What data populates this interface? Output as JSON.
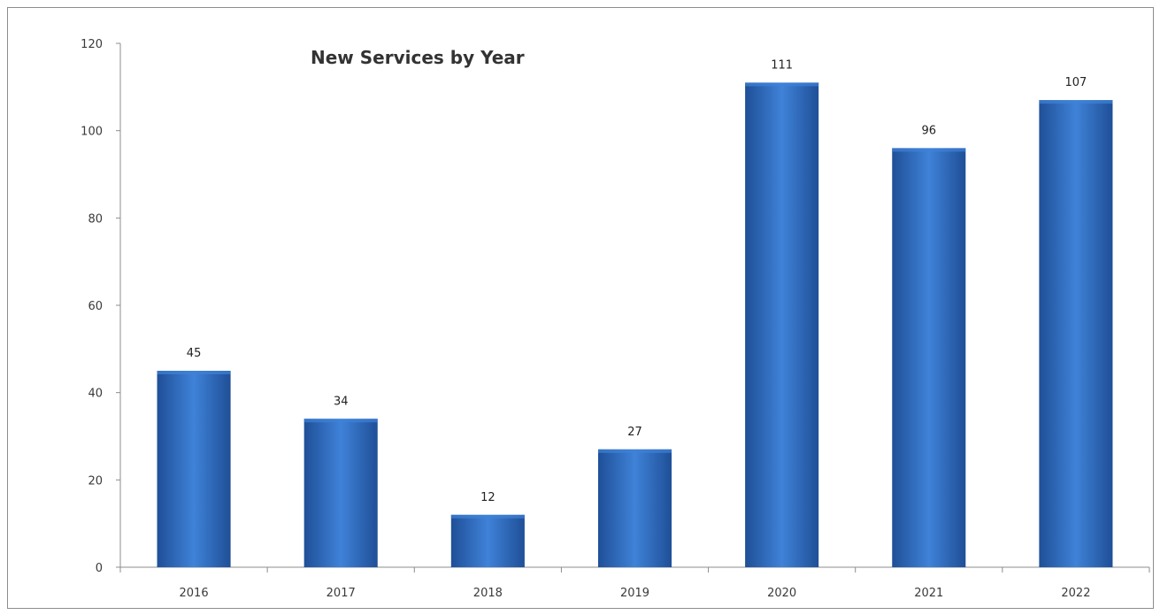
{
  "chart_data": {
    "type": "bar",
    "title": "New Services by Year",
    "categories": [
      "2016",
      "2017",
      "2018",
      "2019",
      "2020",
      "2021",
      "2022"
    ],
    "values": [
      45,
      34,
      12,
      27,
      111,
      96,
      107
    ],
    "data_labels": [
      "45",
      "34",
      "12",
      "27",
      "111",
      "96",
      "107"
    ],
    "y_ticks": [
      "0",
      "20",
      "40",
      "60",
      "80",
      "100",
      "120"
    ],
    "ylim": [
      0,
      120
    ],
    "xlabel": "",
    "ylabel": "",
    "grid": false,
    "legend": "none",
    "bar_color": "#2e6bc4",
    "bar_color_dark": "#1f4f97",
    "bar_color_light": "#3f82d8"
  }
}
